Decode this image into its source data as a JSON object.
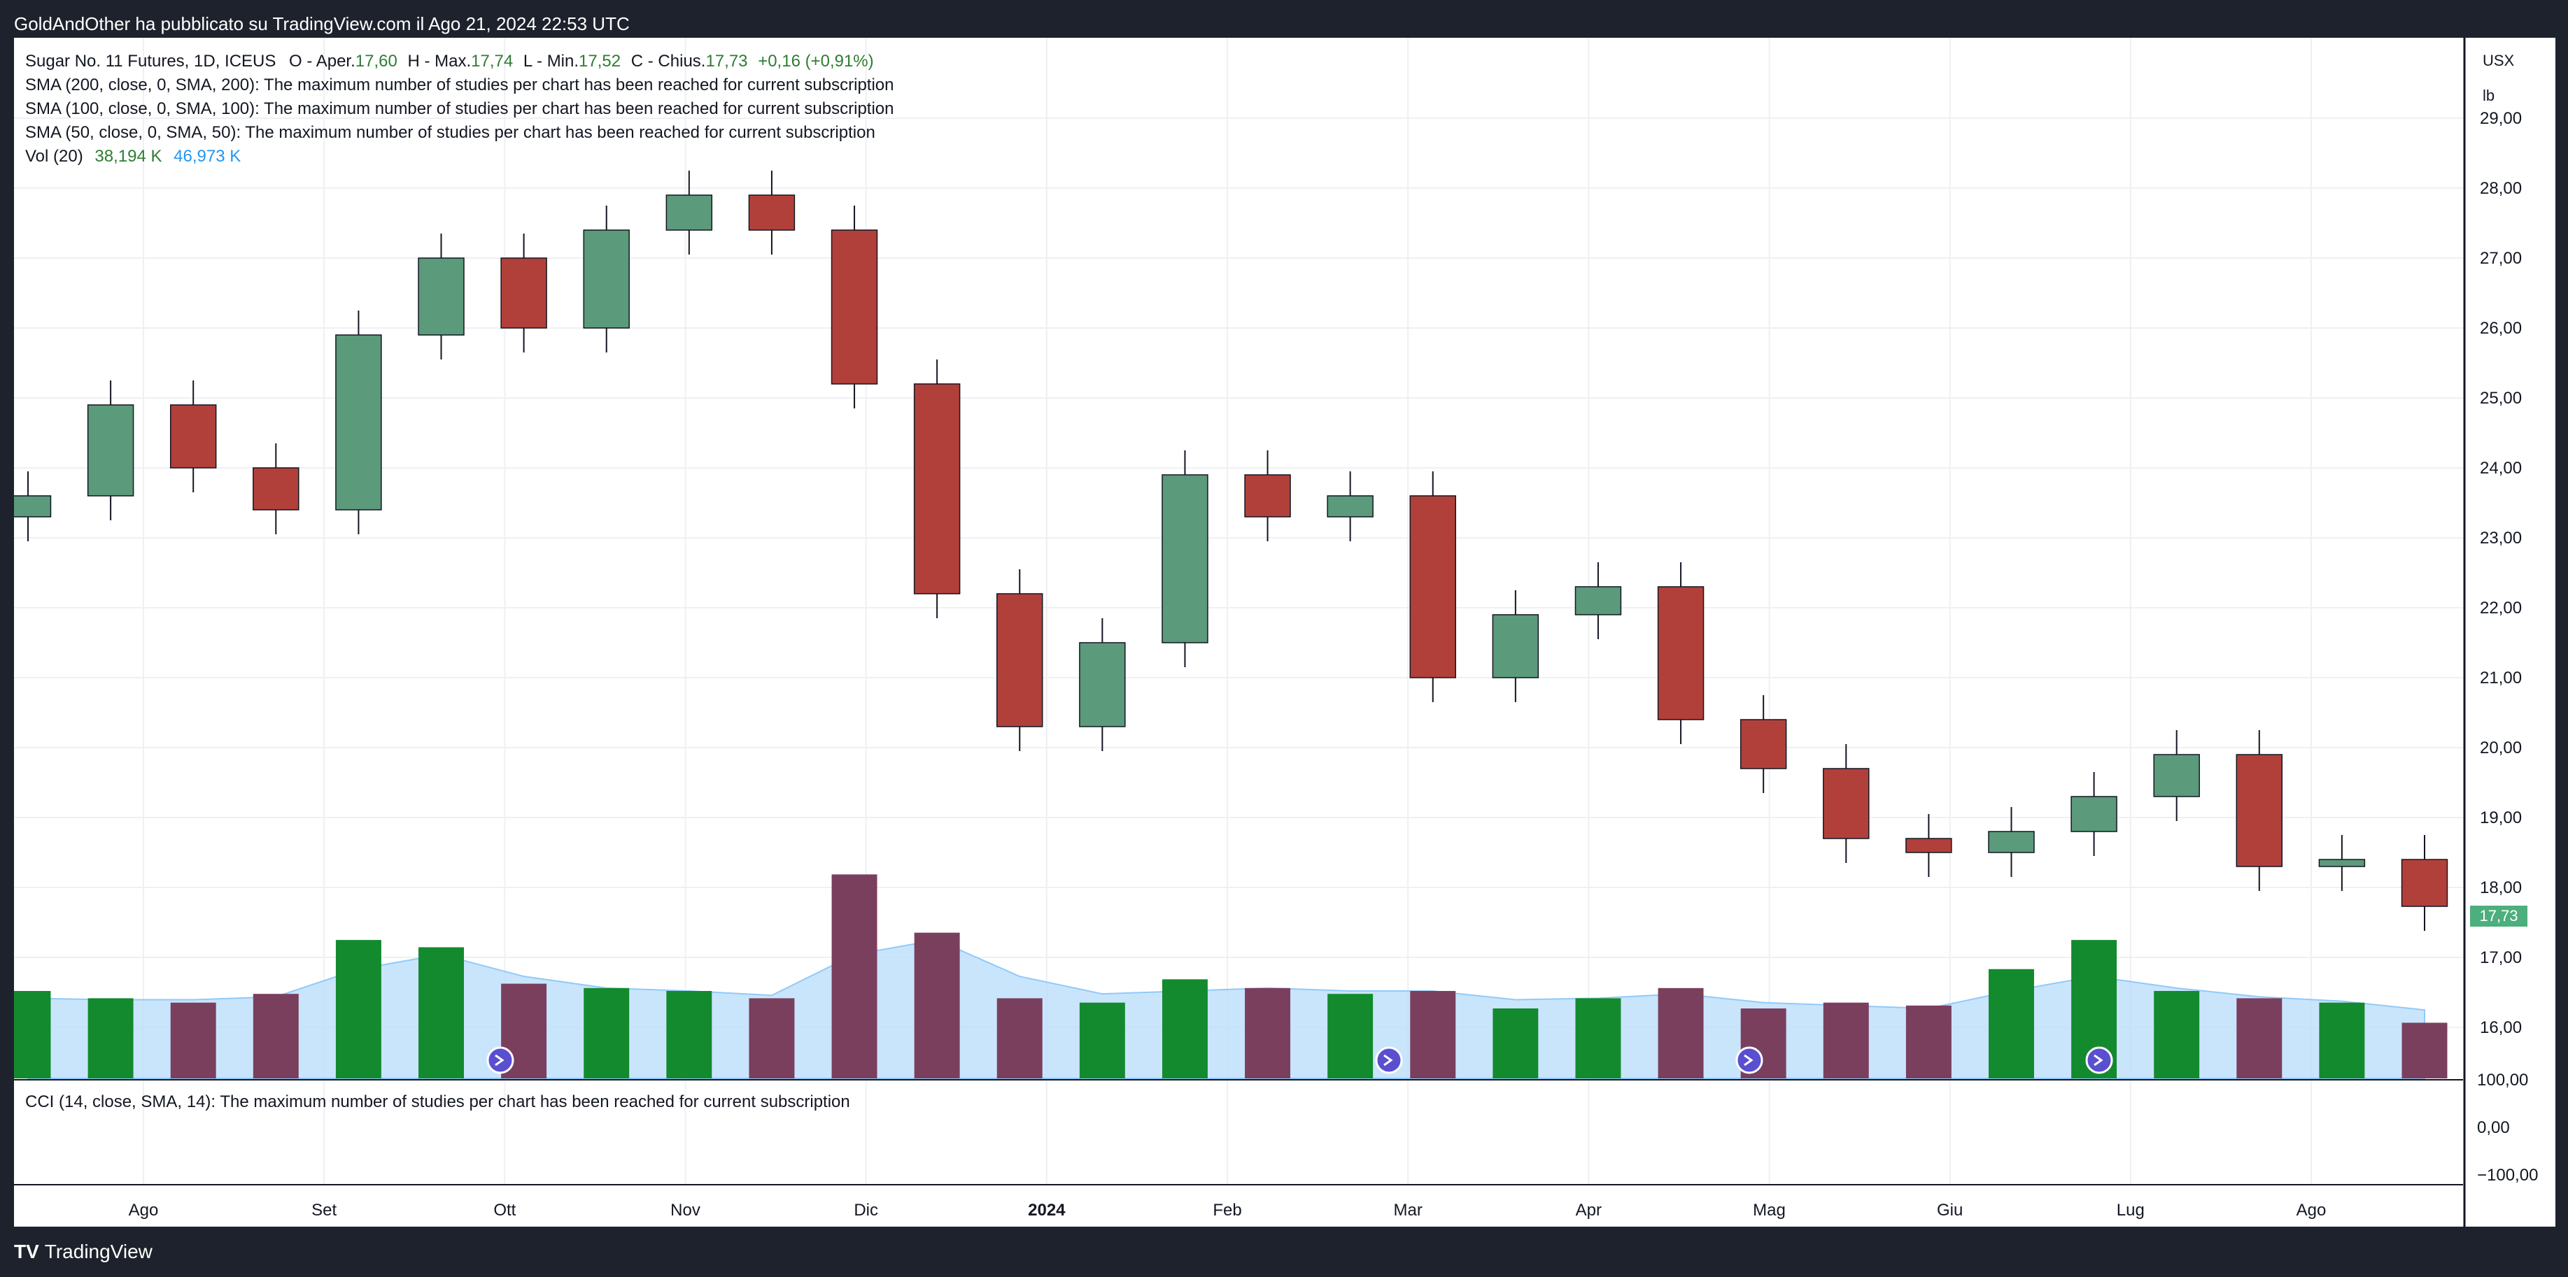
{
  "header": {
    "published": "GoldAndOther ha pubblicato su TradingView.com il Ago 21, 2024 22:53 UTC"
  },
  "legend": {
    "symbol": "Sugar No. 11 Futures, 1D, ICEUS",
    "o_label": "O - Aper.",
    "o_value": "17,60",
    "h_label": "H - Max.",
    "h_value": "17,74",
    "l_label": "L - Min.",
    "l_value": "17,52",
    "c_label": "C - Chius.",
    "c_value": "17,73",
    "change": "+0,16 (+0,91%)",
    "sma200": "SMA (200, close, 0, SMA, 200): The maximum number of studies per chart has been reached for current subscription",
    "sma100": "SMA (100, close, 0, SMA, 100): The maximum number of studies per chart has been reached for current subscription",
    "sma50": "SMA (50, close, 0, SMA, 50): The maximum number of studies per chart has been reached for current subscription",
    "vol_label": "Vol (20)",
    "vol_value": "38,194 K",
    "vol_ma": "46,973 K",
    "cci": "CCI (14, close, SMA, 14): The maximum number of studies per chart has been reached for current subscription"
  },
  "price_scale": {
    "currency": "USX",
    "unit": "lb",
    "last_price": "17,73"
  },
  "footer": {
    "brand": "TradingView"
  },
  "colors": {
    "up": "#5b9a7a",
    "down": "#b2403a",
    "vol_up": "#138a2e",
    "vol_down": "#7b3f5e",
    "vol_ma_fill": "#bbdefb",
    "grid": "#eef0f3",
    "last_price_bg": "#4caf7d"
  },
  "chart_data": [
    {
      "type": "candlestick",
      "title": "Sugar No. 11 Futures, 1D, ICEUS",
      "ylim": [
        15.25,
        30.15
      ],
      "y_ticks": [
        "29,00",
        "28,00",
        "27,00",
        "26,00",
        "25,00",
        "24,00",
        "23,00",
        "22,00",
        "21,00",
        "20,00",
        "19,00",
        "18,00",
        "17,00",
        "16,00"
      ],
      "x_ticks": [
        "Ago",
        "Set",
        "Ott",
        "Nov",
        "Dic",
        "2024",
        "Feb",
        "Mar",
        "Apr",
        "Mag",
        "Giu",
        "Lug",
        "Ago"
      ],
      "x": [
        "2023-07-10",
        "2023-07-24",
        "2023-08-07",
        "2023-08-21",
        "2023-09-04",
        "2023-09-18",
        "2023-10-02",
        "2023-10-16",
        "2023-10-30",
        "2023-11-13",
        "2023-11-27",
        "2023-12-11",
        "2023-12-25",
        "2024-01-08",
        "2024-01-22",
        "2024-02-05",
        "2024-02-19",
        "2024-03-04",
        "2024-03-18",
        "2024-04-01",
        "2024-04-15",
        "2024-04-29",
        "2024-05-13",
        "2024-05-27",
        "2024-06-10",
        "2024-06-24",
        "2024-07-08",
        "2024-07-22",
        "2024-08-05",
        "2024-08-19"
      ],
      "close": [
        23.6,
        24.9,
        24.0,
        23.4,
        25.9,
        27.0,
        26.0,
        27.4,
        27.9,
        27.4,
        25.2,
        22.2,
        20.3,
        21.5,
        23.9,
        23.3,
        23.6,
        21.0,
        21.9,
        22.3,
        20.4,
        19.7,
        18.7,
        18.5,
        18.8,
        19.3,
        19.9,
        18.3,
        18.4,
        17.73
      ],
      "ylabel": "USX/lb"
    },
    {
      "type": "bar",
      "title": "Vol (20)",
      "x": [
        "2023-07-10",
        "2023-07-24",
        "2023-08-07",
        "2023-08-21",
        "2023-09-04",
        "2023-09-18",
        "2023-10-02",
        "2023-10-16",
        "2023-10-30",
        "2023-11-13",
        "2023-11-27",
        "2023-12-11",
        "2023-12-25",
        "2024-01-08",
        "2024-01-22",
        "2024-02-05",
        "2024-02-19",
        "2024-03-04",
        "2024-03-18",
        "2024-04-01",
        "2024-04-15",
        "2024-04-29",
        "2024-05-13",
        "2024-05-27",
        "2024-06-10",
        "2024-06-24",
        "2024-07-08",
        "2024-07-22",
        "2024-08-05",
        "2024-08-19"
      ],
      "values": [
        60,
        55,
        52,
        58,
        95,
        90,
        65,
        62,
        60,
        55,
        140,
        100,
        55,
        52,
        68,
        62,
        58,
        60,
        48,
        55,
        62,
        48,
        52,
        50,
        75,
        95,
        60,
        55,
        52,
        38.194
      ],
      "moving_average": [
        55,
        54,
        54,
        56,
        75,
        85,
        70,
        62,
        60,
        57,
        85,
        95,
        70,
        58,
        60,
        62,
        60,
        60,
        54,
        55,
        58,
        52,
        50,
        48,
        60,
        70,
        62,
        56,
        53,
        46.973
      ],
      "ylabel": "K"
    }
  ]
}
